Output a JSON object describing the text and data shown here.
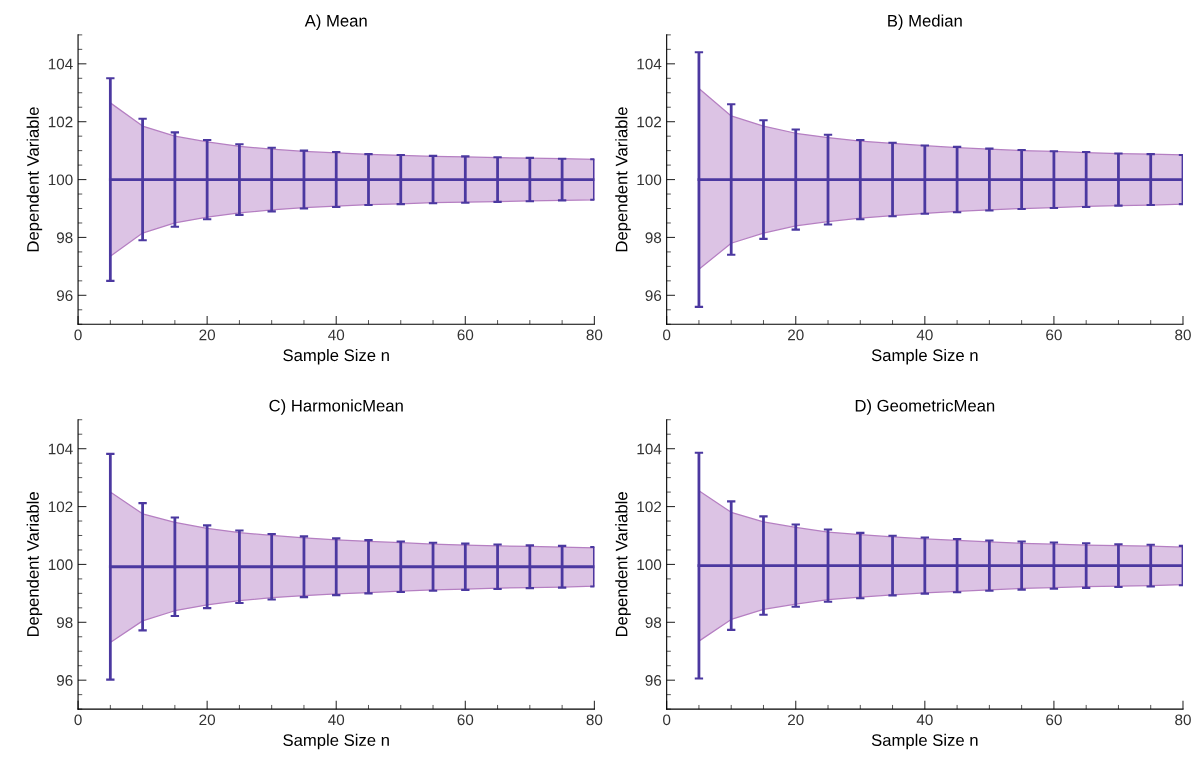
{
  "chart_data": [
    {
      "type": "line",
      "title": "A) Mean",
      "xlabel": "Sample Size n",
      "ylabel": "Dependent Variable",
      "xlim": [
        0,
        80
      ],
      "xticks": [
        0,
        20,
        40,
        60,
        80
      ],
      "ylim": [
        95,
        105
      ],
      "yticks": [
        96,
        98,
        100,
        102,
        104
      ],
      "grid": false,
      "marker": "none",
      "line_style": "solid",
      "x": [
        5,
        10,
        15,
        20,
        25,
        30,
        35,
        40,
        45,
        50,
        55,
        60,
        65,
        70,
        75,
        80
      ],
      "series": [
        {
          "color": "#4b38a0",
          "values": [
            100,
            100,
            100,
            100,
            100,
            100,
            100,
            100,
            100,
            100,
            100,
            100,
            100,
            100,
            100,
            100
          ],
          "errors": [
            3.5,
            2.1,
            1.63,
            1.37,
            1.22,
            1.1,
            1.0,
            0.95,
            0.88,
            0.85,
            0.82,
            0.8,
            0.77,
            0.75,
            0.72,
            0.7
          ],
          "upper": [
            102.65,
            101.85,
            101.5,
            101.3,
            101.15,
            101.05,
            100.97,
            100.92,
            100.87,
            100.84,
            100.8,
            100.78,
            100.76,
            100.74,
            100.72,
            100.7
          ],
          "lower": [
            97.35,
            98.15,
            98.5,
            98.7,
            98.85,
            98.95,
            99.03,
            99.08,
            99.13,
            99.16,
            99.2,
            99.22,
            99.24,
            99.26,
            99.28,
            99.3
          ]
        }
      ]
    },
    {
      "type": "line",
      "title": "B) Median",
      "xlabel": "Sample Size n",
      "ylabel": "Dependent Variable",
      "xlim": [
        0,
        80
      ],
      "xticks": [
        0,
        20,
        40,
        60,
        80
      ],
      "ylim": [
        95,
        105
      ],
      "yticks": [
        96,
        98,
        100,
        102,
        104
      ],
      "grid": false,
      "marker": "none",
      "line_style": "solid",
      "x": [
        5,
        10,
        15,
        20,
        25,
        30,
        35,
        40,
        45,
        50,
        55,
        60,
        65,
        70,
        75,
        80
      ],
      "series": [
        {
          "color": "#4b38a0",
          "values": [
            100,
            100,
            100,
            100,
            100,
            100,
            100,
            100,
            100,
            100,
            100,
            100,
            100,
            100,
            100,
            100
          ],
          "errors": [
            4.4,
            2.6,
            2.05,
            1.73,
            1.55,
            1.37,
            1.27,
            1.18,
            1.13,
            1.07,
            1.02,
            0.98,
            0.95,
            0.9,
            0.88,
            0.85
          ],
          "upper": [
            103.15,
            102.2,
            101.85,
            101.6,
            101.45,
            101.33,
            101.25,
            101.17,
            101.1,
            101.05,
            101.0,
            100.97,
            100.93,
            100.9,
            100.88,
            100.85
          ],
          "lower": [
            96.9,
            97.8,
            98.15,
            98.4,
            98.55,
            98.67,
            98.75,
            98.83,
            98.9,
            98.95,
            99.0,
            99.03,
            99.07,
            99.1,
            99.12,
            99.15
          ]
        }
      ]
    },
    {
      "type": "line",
      "title": "C) HarmonicMean",
      "xlabel": "Sample Size n",
      "ylabel": "Dependent Variable",
      "xlim": [
        0,
        80
      ],
      "xticks": [
        0,
        20,
        40,
        60,
        80
      ],
      "ylim": [
        95,
        105
      ],
      "yticks": [
        96,
        98,
        100,
        102,
        104
      ],
      "grid": false,
      "marker": "none",
      "line_style": "solid",
      "x": [
        5,
        10,
        15,
        20,
        25,
        30,
        35,
        40,
        45,
        50,
        55,
        60,
        65,
        70,
        75,
        80
      ],
      "series": [
        {
          "color": "#4b38a0",
          "values": [
            99.92,
            99.92,
            99.92,
            99.92,
            99.92,
            99.92,
            99.92,
            99.92,
            99.92,
            99.92,
            99.92,
            99.92,
            99.92,
            99.92,
            99.92,
            99.92
          ],
          "errors": [
            3.9,
            2.2,
            1.7,
            1.43,
            1.25,
            1.13,
            1.05,
            0.98,
            0.92,
            0.87,
            0.83,
            0.8,
            0.77,
            0.74,
            0.72,
            0.68
          ],
          "upper": [
            102.5,
            101.75,
            101.45,
            101.25,
            101.1,
            101.0,
            100.92,
            100.85,
            100.8,
            100.75,
            100.7,
            100.67,
            100.64,
            100.62,
            100.6,
            100.57
          ],
          "lower": [
            97.3,
            98.05,
            98.4,
            98.6,
            98.75,
            98.85,
            98.92,
            98.98,
            99.03,
            99.08,
            99.12,
            99.15,
            99.18,
            99.2,
            99.22,
            99.25
          ]
        }
      ]
    },
    {
      "type": "line",
      "title": "D) GeometricMean",
      "xlabel": "Sample Size n",
      "ylabel": "Dependent Variable",
      "xlim": [
        0,
        80
      ],
      "xticks": [
        0,
        20,
        40,
        60,
        80
      ],
      "ylim": [
        95,
        105
      ],
      "yticks": [
        96,
        98,
        100,
        102,
        104
      ],
      "grid": false,
      "marker": "none",
      "line_style": "solid",
      "x": [
        5,
        10,
        15,
        20,
        25,
        30,
        35,
        40,
        45,
        50,
        55,
        60,
        65,
        70,
        75,
        80
      ],
      "series": [
        {
          "color": "#4b38a0",
          "values": [
            99.96,
            99.96,
            99.96,
            99.96,
            99.96,
            99.96,
            99.96,
            99.96,
            99.96,
            99.96,
            99.96,
            99.96,
            99.96,
            99.96,
            99.96,
            99.96
          ],
          "errors": [
            3.9,
            2.22,
            1.7,
            1.42,
            1.25,
            1.13,
            1.03,
            0.97,
            0.92,
            0.87,
            0.83,
            0.8,
            0.77,
            0.74,
            0.72,
            0.68
          ],
          "upper": [
            102.55,
            101.8,
            101.47,
            101.28,
            101.12,
            101.03,
            100.95,
            100.88,
            100.83,
            100.78,
            100.73,
            100.7,
            100.67,
            100.65,
            100.63,
            100.6
          ],
          "lower": [
            97.35,
            98.1,
            98.45,
            98.63,
            98.78,
            98.87,
            98.95,
            99.02,
            99.07,
            99.12,
            99.17,
            99.2,
            99.23,
            99.25,
            99.27,
            99.3
          ]
        }
      ]
    }
  ]
}
